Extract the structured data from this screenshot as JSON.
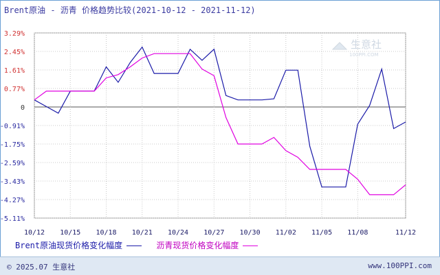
{
  "title": "Brent原油 - 沥青 价格趋势比较(2021-10-12 - 2021-11-12)",
  "watermark": {
    "text": "生意社",
    "sub": "100PPI.COM"
  },
  "footer": {
    "copyright": "© 2025.07 生意社",
    "site": "www.100PPI.com"
  },
  "colors": {
    "brent": "#1a1aa8",
    "asphalt": "#e000e0",
    "grid": "#c8c8c8",
    "frame": "#6a9fd4",
    "yPositive": "#d03030",
    "yNegative": "#2a2aa0",
    "yZero": "#333333"
  },
  "chart_data": {
    "type": "line",
    "title": "Brent原油 - 沥青 价格趋势比较(2021-10-12 - 2021-11-12)",
    "x": [
      "10/12",
      "10/13",
      "10/14",
      "10/15",
      "10/16",
      "10/17",
      "10/18",
      "10/19",
      "10/20",
      "10/21",
      "10/22",
      "10/23",
      "10/24",
      "10/25",
      "10/26",
      "10/27",
      "10/28",
      "10/29",
      "10/30",
      "10/31",
      "11/01",
      "11/02",
      "11/03",
      "11/04",
      "11/05",
      "11/06",
      "11/07",
      "11/08",
      "11/09",
      "11/10",
      "11/11",
      "11/12"
    ],
    "x_ticks": [
      "10/12",
      "10/15",
      "10/18",
      "10/21",
      "10/24",
      "10/27",
      "10/30",
      "11/02",
      "11/05",
      "11/08",
      "11/12"
    ],
    "y_ticks": [
      "3.29%",
      "2.45%",
      "1.61%",
      "0.77%",
      "0",
      "-0.91%",
      "-1.75%",
      "-2.59%",
      "-3.43%",
      "-4.27%",
      "-5.11%"
    ],
    "ylim": [
      -5.11,
      3.29
    ],
    "grid": true,
    "legend_position": "bottom",
    "series": [
      {
        "name": "Brent原油现货价格变化幅度",
        "values": [
          0.25,
          -0.05,
          -0.35,
          0.65,
          0.65,
          0.65,
          1.75,
          1.05,
          1.95,
          2.65,
          1.45,
          1.45,
          1.45,
          2.55,
          2.05,
          2.55,
          0.45,
          0.25,
          0.25,
          0.25,
          0.3,
          1.6,
          1.6,
          -1.85,
          -3.7,
          -3.7,
          -3.7,
          -0.85,
          0,
          1.65,
          -1.05,
          -0.75
        ]
      },
      {
        "name": "沥青现货价格变化幅度",
        "values": [
          0.25,
          0.65,
          0.65,
          0.65,
          0.65,
          0.65,
          1.25,
          1.4,
          1.75,
          2.15,
          2.35,
          2.35,
          2.35,
          2.35,
          1.65,
          1.35,
          -0.55,
          -1.75,
          -1.75,
          -1.75,
          -1.45,
          -2.05,
          -2.35,
          -2.9,
          -2.9,
          -2.9,
          -2.9,
          -3.35,
          -4.05,
          -4.05,
          -4.05,
          -3.6
        ]
      }
    ]
  }
}
